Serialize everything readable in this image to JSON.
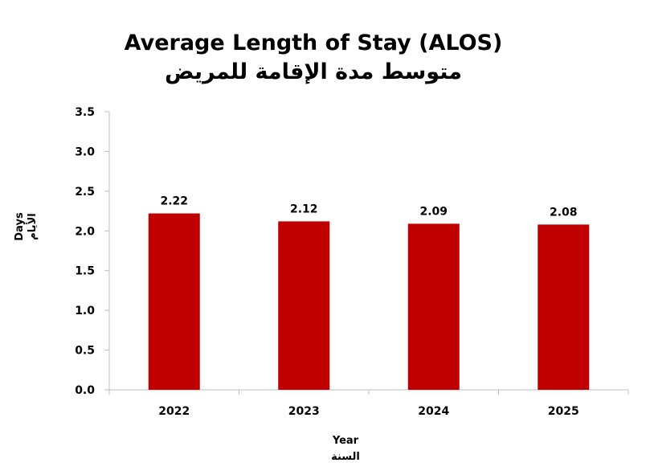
{
  "chart_data": {
    "type": "bar",
    "title": "Average Length of Stay (ALOS)",
    "subtitle": "متوسط مدة الإقامة للمريض",
    "xlabel": "Year",
    "xlabel_ar": "السنة",
    "ylabel": "Days",
    "ylabel_ar": "الأيام",
    "categories": [
      "2022",
      "2023",
      "2024",
      "2025"
    ],
    "values": [
      2.22,
      2.12,
      2.09,
      2.08
    ],
    "data_labels": [
      "2.22",
      "2.12",
      "2.09",
      "2.08"
    ],
    "ylim": [
      0,
      3.5
    ],
    "yticks": [
      0,
      0.5,
      1,
      1.5,
      2,
      2.5,
      3,
      3.5
    ],
    "ytick_labels": [
      "0.0",
      "0.5",
      "1.0",
      "1.5",
      "2.0",
      "2.5",
      "3.0",
      "3.5"
    ],
    "grid": false,
    "legend": "none",
    "bar_color": "#c00000"
  }
}
